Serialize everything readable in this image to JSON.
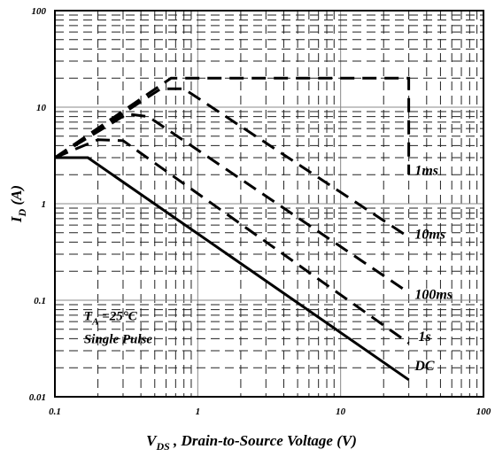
{
  "chart_data": {
    "type": "line",
    "xlabel_main": "V",
    "xlabel_sub": "DS",
    "xlabel_rest": " , Drain-to-Source Voltage (V)",
    "ylabel_main": "I",
    "ylabel_sub": "D",
    "ylabel_rest": " (A)",
    "x_scale": "log",
    "y_scale": "log",
    "xlim": [
      0.1,
      100
    ],
    "ylim": [
      0.01,
      100
    ],
    "x_ticks": [
      {
        "value": 0.1,
        "label": "0.1"
      },
      {
        "value": 1,
        "label": "1"
      },
      {
        "value": 10,
        "label": "10"
      },
      {
        "value": 100,
        "label": "100"
      }
    ],
    "y_ticks": [
      {
        "value": 0.01,
        "label": "0.01"
      },
      {
        "value": 0.1,
        "label": "0.1"
      },
      {
        "value": 1,
        "label": "1"
      },
      {
        "value": 10,
        "label": "10"
      },
      {
        "value": 100,
        "label": "100"
      }
    ],
    "grid": true,
    "series": [
      {
        "name": "1ms",
        "style": "dashed",
        "points": [
          [
            0.1,
            3
          ],
          [
            0.65,
            20
          ],
          [
            30,
            20
          ],
          [
            30,
            2
          ]
        ],
        "label_at": [
          33,
          2.2
        ]
      },
      {
        "name": "10ms",
        "style": "dashed",
        "points": [
          [
            0.1,
            3
          ],
          [
            0.55,
            15.5
          ],
          [
            0.8,
            15.5
          ],
          [
            30,
            0.45
          ]
        ],
        "label_at": [
          33,
          0.48
        ]
      },
      {
        "name": "100ms",
        "style": "dashed",
        "points": [
          [
            0.1,
            3
          ],
          [
            0.32,
            8.5
          ],
          [
            0.45,
            8
          ],
          [
            30,
            0.12
          ]
        ],
        "label_at": [
          33,
          0.115
        ]
      },
      {
        "name": "1s",
        "style": "dashed",
        "points": [
          [
            0.1,
            3
          ],
          [
            0.2,
            4.6
          ],
          [
            0.3,
            4.5
          ],
          [
            30,
            0.036
          ]
        ],
        "label_at": [
          35,
          0.042
        ]
      },
      {
        "name": "DC",
        "style": "solid",
        "points": [
          [
            0.1,
            3
          ],
          [
            0.17,
            3
          ],
          [
            30,
            0.015
          ]
        ],
        "label_at": [
          33,
          0.021
        ]
      }
    ],
    "annotations": [
      {
        "text_main": "T",
        "text_sub": "A",
        "text_rest": " =25°C",
        "at": [
          0.16,
          0.069
        ]
      },
      {
        "text": "Single Pulse",
        "at": [
          0.16,
          0.04
        ]
      }
    ]
  }
}
